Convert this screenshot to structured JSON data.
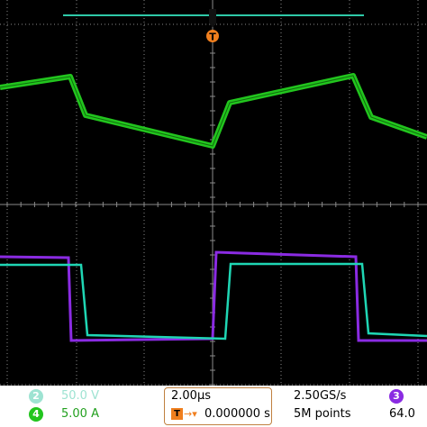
{
  "scope": {
    "trigger_marker": "T",
    "colors": {
      "background": "#000000",
      "grid": "#8a8a8a",
      "ch2": "#1fd6b4",
      "ch3": "#8a2be2",
      "ch4": "#22c51e",
      "trigger": "#f07f1e",
      "top_bar": "#2ec9a8"
    }
  },
  "status": {
    "ch2": {
      "number": "2",
      "scale": "50.0 V",
      "color": "#9ee3d2"
    },
    "ch4": {
      "number": "4",
      "scale": "5.00 A",
      "color": "#22c51e"
    },
    "timebase": "2.00µs",
    "trigger_icon": "T",
    "trigger_arrow": "→▾",
    "trigger_position": "0.000000 s",
    "sample_rate": "2.50GS/s",
    "record_length": "5M points",
    "ch3": {
      "number": "3",
      "value": "64.0",
      "color": "#8a2be2"
    }
  }
}
